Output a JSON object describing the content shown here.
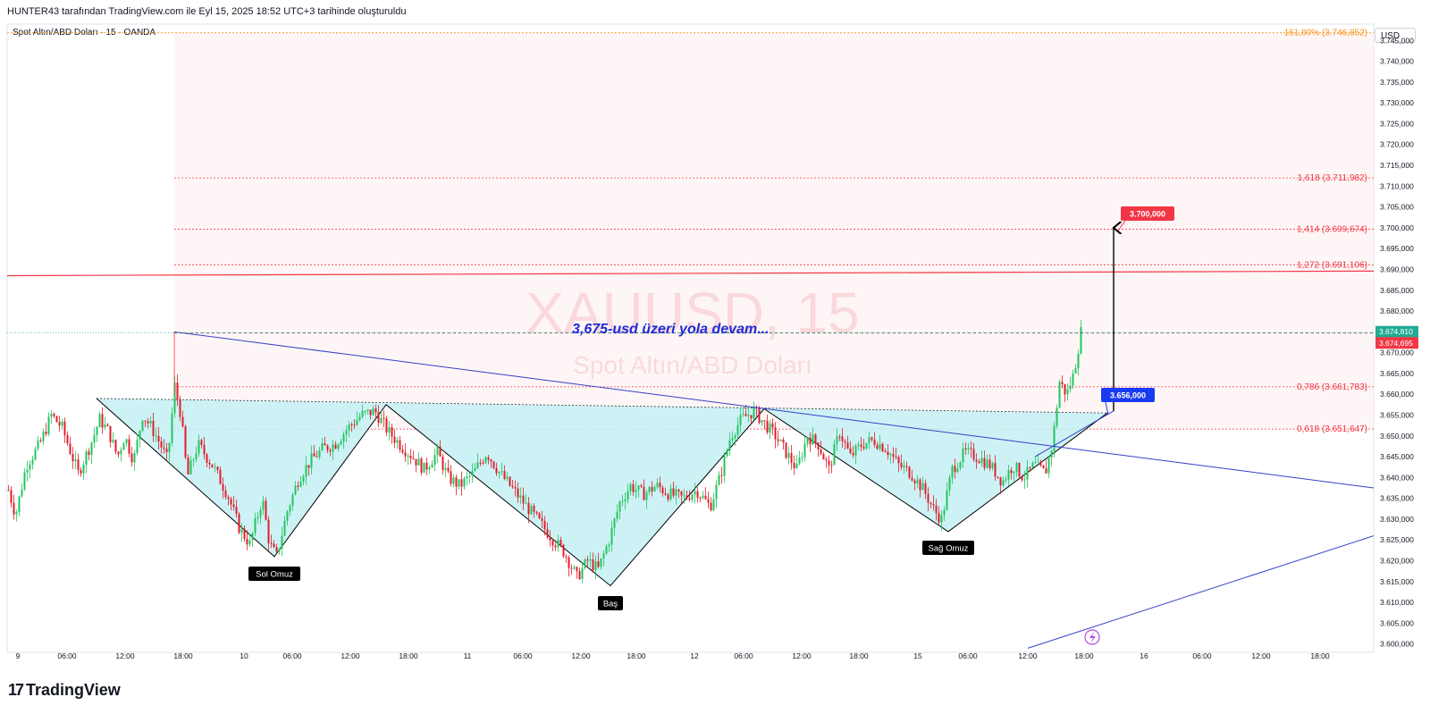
{
  "header": {
    "author_line": "HUNTER43 tarafından TradingView.com ile Eyl 15, 2025 18:52 UTC+3 tarihinde oluşturuldu",
    "symbol_line": "Spot Altın/ABD Doları · 15 · OANDA",
    "currency": "USD"
  },
  "footer": {
    "logo_mark": "17",
    "logo_text": "TradingView"
  },
  "chart_data": {
    "type": "candlestick",
    "watermark": {
      "symbol": "XAUUSD, 15",
      "name": "Spot Altın/ABD Doları"
    },
    "y_axis": {
      "range": [
        3598,
        3748.5
      ],
      "ticks": [
        "3.745,000",
        "3.740,000",
        "3.735,000",
        "3.730,000",
        "3.725,000",
        "3.720,000",
        "3.715,000",
        "3.710,000",
        "3.705,000",
        "3.700,000",
        "3.695,000",
        "3.690,000",
        "3.685,000",
        "3.680,000",
        "3.675,000",
        "3.670,000",
        "3.665,000",
        "3.660,000",
        "3.655,000",
        "3.650,000",
        "3.645,000",
        "3.640,000",
        "3.635,000",
        "3.630,000",
        "3.625,000",
        "3.620,000",
        "3.615,000",
        "3.610,000",
        "3.605,000",
        "3.600,000"
      ],
      "tick_values": [
        3745,
        3740,
        3735,
        3730,
        3725,
        3720,
        3715,
        3710,
        3705,
        3700,
        3695,
        3690,
        3685,
        3680,
        3675,
        3670,
        3665,
        3660,
        3655,
        3650,
        3645,
        3640,
        3635,
        3630,
        3625,
        3620,
        3615,
        3610,
        3605,
        3600
      ]
    },
    "x_axis": {
      "labels": [
        "9",
        "06:00",
        "12:00",
        "18:00",
        "10",
        "06:00",
        "12:00",
        "18:00",
        "11",
        "06:00",
        "12:00",
        "18:00",
        "12",
        "06:00",
        "12:00",
        "18:00",
        "15",
        "06:00",
        "12:00",
        "18:00",
        "16",
        "06:00",
        "12:00",
        "18:00"
      ]
    },
    "price_tags": [
      {
        "value": 3674.81,
        "label": "3.674,810",
        "color": "#22ab94"
      },
      {
        "value": 3674.695,
        "label": "3.674,695",
        "color": "#f23645"
      }
    ],
    "fibonacci": [
      {
        "label": "161,80% (3.746,852)",
        "value": 3746.852,
        "color": "#f7931a"
      },
      {
        "label": "1,618 (3.711,982)",
        "value": 3711.982,
        "color": "#f23645"
      },
      {
        "label": "1,414 (3.699,674)",
        "value": 3699.674,
        "color": "#f23645"
      },
      {
        "label": "1,272 (3.691,106)",
        "value": 3691.106,
        "color": "#f23645"
      },
      {
        "label": "0,786 (3.661,783)",
        "value": 3661.783,
        "color": "#f23645"
      },
      {
        "label": "0,618 (3.651,647)",
        "value": 3651.647,
        "color": "#f23645"
      }
    ],
    "annotations": {
      "headline": "3,675-usd üzeri yola devam...",
      "target_label": "3.700,000",
      "breakout_label": "3.656,000",
      "left_shoulder": "Sol Omuz",
      "head": "Baş",
      "right_shoulder": "Sağ Omuz"
    },
    "colors": {
      "up": "#22c55e",
      "down": "#e11d2a",
      "trendline": "#3440c7",
      "pattern_fill": "#c4f0f5",
      "resistance": "#f23645"
    },
    "ohlc_path": [
      [
        0,
        3637
      ],
      [
        8,
        3631
      ],
      [
        20,
        3643
      ],
      [
        35,
        3648
      ],
      [
        48,
        3655
      ],
      [
        60,
        3652
      ],
      [
        78,
        3641
      ],
      [
        92,
        3648
      ],
      [
        102,
        3654
      ],
      [
        112,
        3651
      ],
      [
        122,
        3645
      ],
      [
        130,
        3650
      ],
      [
        140,
        3644
      ],
      [
        150,
        3655
      ],
      [
        160,
        3652
      ],
      [
        170,
        3648
      ],
      [
        178,
        3644
      ],
      [
        186,
        3662
      ],
      [
        193,
        3655
      ],
      [
        200,
        3640
      ],
      [
        212,
        3648
      ],
      [
        228,
        3643
      ],
      [
        245,
        3636
      ],
      [
        258,
        3628
      ],
      [
        270,
        3624
      ],
      [
        284,
        3635
      ],
      [
        292,
        3624
      ],
      [
        300,
        3621
      ],
      [
        312,
        3632
      ],
      [
        325,
        3640
      ],
      [
        338,
        3644
      ],
      [
        352,
        3647
      ],
      [
        365,
        3648
      ],
      [
        380,
        3652
      ],
      [
        395,
        3655
      ],
      [
        410,
        3656
      ],
      [
        425,
        3651
      ],
      [
        438,
        3648
      ],
      [
        452,
        3645
      ],
      [
        465,
        3642
      ],
      [
        480,
        3646
      ],
      [
        492,
        3640
      ],
      [
        505,
        3638
      ],
      [
        520,
        3641
      ],
      [
        535,
        3646
      ],
      [
        550,
        3641
      ],
      [
        565,
        3637
      ],
      [
        580,
        3633
      ],
      [
        595,
        3629
      ],
      [
        610,
        3625
      ],
      [
        622,
        3622
      ],
      [
        636,
        3616
      ],
      [
        648,
        3620
      ],
      [
        660,
        3618
      ],
      [
        672,
        3625
      ],
      [
        684,
        3634
      ],
      [
        696,
        3638
      ],
      [
        710,
        3636
      ],
      [
        725,
        3638
      ],
      [
        740,
        3636
      ],
      [
        755,
        3635
      ],
      [
        770,
        3637
      ],
      [
        785,
        3633
      ],
      [
        796,
        3640
      ],
      [
        808,
        3650
      ],
      [
        820,
        3654
      ],
      [
        834,
        3656
      ],
      [
        846,
        3653
      ],
      [
        858,
        3650
      ],
      [
        870,
        3646
      ],
      [
        882,
        3642
      ],
      [
        894,
        3650
      ],
      [
        906,
        3648
      ],
      [
        918,
        3642
      ],
      [
        930,
        3651
      ],
      [
        942,
        3645
      ],
      [
        955,
        3648
      ],
      [
        968,
        3649
      ],
      [
        982,
        3647
      ],
      [
        996,
        3643
      ],
      [
        1010,
        3641
      ],
      [
        1024,
        3637
      ],
      [
        1036,
        3632
      ],
      [
        1044,
        3630
      ],
      [
        1056,
        3642
      ],
      [
        1070,
        3646
      ],
      [
        1084,
        3645
      ],
      [
        1098,
        3643
      ],
      [
        1112,
        3639
      ],
      [
        1124,
        3643
      ],
      [
        1136,
        3640
      ],
      [
        1148,
        3643
      ],
      [
        1160,
        3641
      ],
      [
        1168,
        3648
      ],
      [
        1176,
        3663
      ],
      [
        1184,
        3660
      ],
      [
        1192,
        3665
      ],
      [
        1200,
        3675
      ]
    ]
  }
}
